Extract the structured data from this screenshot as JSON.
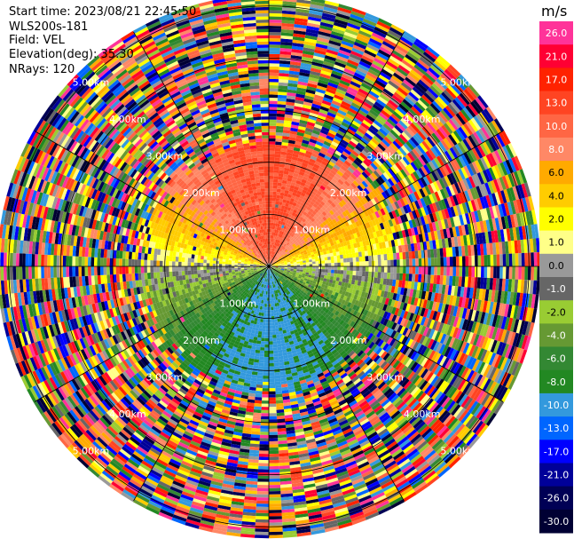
{
  "header": {
    "start_time": "Start time: 2023/08/21 22:45:50",
    "instrument": "WLS200s-181",
    "field": "Field: VEL",
    "elevation": "Elevation(deg): 35.30",
    "nrays": "NRays: 120"
  },
  "chart_data": {
    "type": "heatmap",
    "projection": "polar-ppi",
    "field": "VEL",
    "nrays": 120,
    "range_rings_km": [
      1,
      2,
      3,
      4,
      5
    ],
    "ring_labels": [
      "1.00km",
      "2.00km",
      "3.00km",
      "4.00km",
      "5.00km"
    ],
    "max_range_km": 5.2,
    "colorbar": {
      "unit": "m/s",
      "ticks": [
        "26.0",
        "21.0",
        "17.0",
        "13.0",
        "10.0",
        "8.0",
        "6.0",
        "4.0",
        "2.0",
        "1.0",
        "0.0",
        "-1.0",
        "-2.0",
        "-4.0",
        "-6.0",
        "-8.0",
        "-10.0",
        "-13.0",
        "-17.0",
        "-21.0",
        "-26.0",
        "-30.0"
      ],
      "colors": [
        "#ff3399",
        "#ff0033",
        "#ff2200",
        "#ff4422",
        "#ff6644",
        "#ff8866",
        "#ffaa00",
        "#ffcc00",
        "#ffff00",
        "#ffff88",
        "#999999",
        "#666666",
        "#99cc33",
        "#669933",
        "#338833",
        "#228822",
        "#3399dd",
        "#0066ff",
        "#0000ff",
        "#000099",
        "#000055",
        "#000033"
      ]
    },
    "velocity_pattern": {
      "north_mean": 12,
      "south_mean": -10,
      "clean_range_km": 2.6
    }
  }
}
